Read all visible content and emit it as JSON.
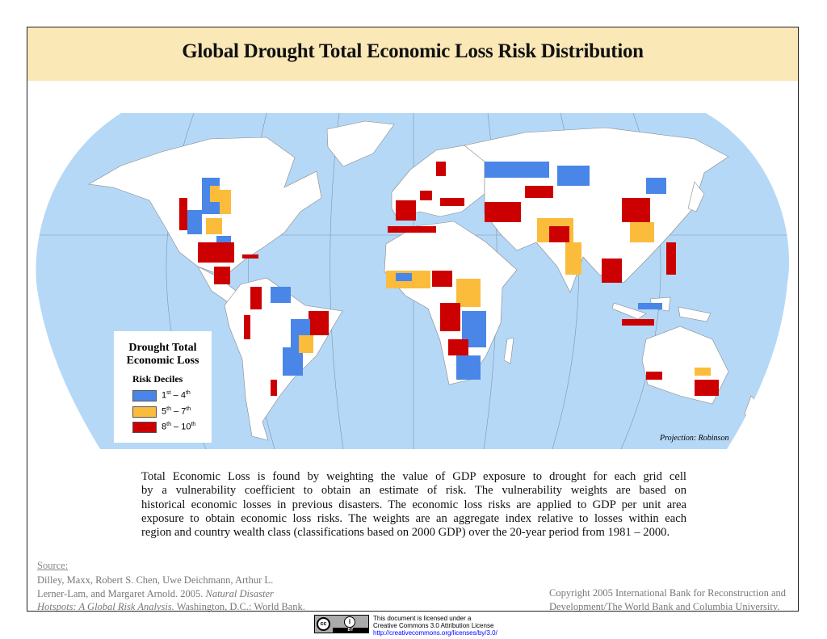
{
  "title": "Global Drought Total Economic Loss Risk Distribution",
  "legend": {
    "title_line1": "Drought Total",
    "title_line2": "Economic Loss",
    "subtitle": "Risk Deciles",
    "items": [
      {
        "from": "1",
        "from_sup": "st",
        "to": "4",
        "to_sup": "th",
        "color": "#4a86e8"
      },
      {
        "from": "5",
        "from_sup": "th",
        "to": "7",
        "to_sup": "th",
        "color": "#fbbc3c"
      },
      {
        "from": "8",
        "from_sup": "th",
        "to": "10",
        "to_sup": "th",
        "color": "#cc0000"
      }
    ],
    "dash": "–"
  },
  "projection": "Projection: Robinson",
  "colors": {
    "ocean": "#b5d8f7",
    "land": "#ffffff",
    "title_band": "#fbe8b7"
  },
  "description_lines": [
    "Total Economic Loss is found by weighting the value of GDP exposure to drought for each grid cell",
    "by a vulnerability coefficient to obtain an estimate of risk. The vulnerability weights are based on",
    "historical economic losses in previous disasters. The economic loss risks are applied to GDP per unit area",
    "exposure to obtain economic loss risks. The weights are an aggregate index relative to losses within each",
    "region and country wealth class (classifications based on 2000 GDP) over the 20-year period from 1981 – 2000."
  ],
  "source": {
    "heading": "Source:",
    "line1": "Dilley, Maxx, Robert S. Chen, Uwe Deichmann, Arthur L.",
    "line2a": "Lerner-Lam, and Margaret Arnold. 2005. ",
    "line2b": "Natural Disaster",
    "line3a": "Hotspots: A Global Risk Analysis.",
    "line3b": " Washington, D.C.: World Bank."
  },
  "copyright": {
    "line1": "Copyright 2005 International Bank for Reconstruction and",
    "line2": "Development/The World Bank and Columbia University."
  },
  "license": {
    "badge": "cc",
    "by": "BY",
    "info": "i",
    "line1": "This document is licensed under a",
    "line2": "Creative Commons 3.0 Attribution License",
    "url": "http://creativecommons.org/licenses/by/3.0/"
  }
}
